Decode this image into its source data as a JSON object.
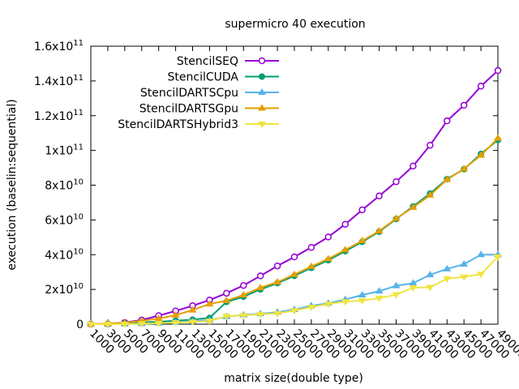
{
  "chart_data": {
    "type": "line",
    "title": "supermicro 40 execution",
    "xlabel": "matrix size(double type)",
    "ylabel": "execution (baselin:sequential)",
    "ylim": [
      0,
      160000000000.0
    ],
    "yticks": [
      {
        "value": 0,
        "label": "0"
      },
      {
        "value": 20000000000.0,
        "label": "2x10",
        "exp": "10"
      },
      {
        "value": 40000000000.0,
        "label": "4x10",
        "exp": "10"
      },
      {
        "value": 60000000000.0,
        "label": "6x10",
        "exp": "10"
      },
      {
        "value": 80000000000.0,
        "label": "8x10",
        "exp": "10"
      },
      {
        "value": 100000000000.0,
        "label": "1x10",
        "exp": "11"
      },
      {
        "value": 120000000000.0,
        "label": "1.2x10",
        "exp": "11"
      },
      {
        "value": 140000000000.0,
        "label": "1.4x10",
        "exp": "11"
      },
      {
        "value": 160000000000.0,
        "label": "1.6x10",
        "exp": "11"
      }
    ],
    "grid": false,
    "legend_position": "top-left",
    "categories": [
      "1000",
      "3000",
      "5000",
      "7000",
      "9000",
      "11000",
      "13000",
      "15000",
      "17000",
      "19000",
      "21000",
      "23000",
      "25000",
      "27000",
      "29000",
      "31000",
      "33000",
      "35000",
      "37000",
      "39000",
      "41000",
      "43000",
      "45000",
      "47000",
      "49000"
    ],
    "series": [
      {
        "name": "StencilSEQ",
        "color": "#9400d3",
        "marker": "circle-open",
        "values": [
          0,
          130000000.0,
          960000000.0,
          2400000000.0,
          4900000000.0,
          7600000000.0,
          10600000000.0,
          13900000000.0,
          17800000000.0,
          22300000000.0,
          27800000000.0,
          33500000000.0,
          38700000000.0,
          44200000000.0,
          50200000000.0,
          57500000000.0,
          65800000000.0,
          73800000000.0,
          82000000000.0,
          91000000000.0,
          103000000000.0,
          117000000000.0,
          126000000000.0,
          137000000000.0,
          146000000000.0
        ]
      },
      {
        "name": "StencilCUDA",
        "color": "#009e73",
        "marker": "circle-filled",
        "values": [
          0,
          100000000.0,
          500000000.0,
          1000000000.0,
          1400000000.0,
          2000000000.0,
          2600000000.0,
          3600000000.0,
          12800000000.0,
          15800000000.0,
          20000000000.0,
          23600000000.0,
          27800000000.0,
          32400000000.0,
          36800000000.0,
          42000000000.0,
          47400000000.0,
          53200000000.0,
          60500000000.0,
          67800000000.0,
          75200000000.0,
          83500000000.0,
          89200000000.0,
          98000000000.0,
          106000000000.0
        ]
      },
      {
        "name": "StencilDARTSCpu",
        "color": "#56b4e9",
        "marker": "triangle-filled",
        "values": [
          0,
          0,
          100000000.0,
          300000000.0,
          600000000.0,
          1000000000.0,
          1600000000.0,
          2300000000.0,
          4300000000.0,
          5300000000.0,
          6000000000.0,
          6900000000.0,
          8400000000.0,
          10600000000.0,
          12000000000.0,
          14200000000.0,
          16800000000.0,
          19000000000.0,
          22100000000.0,
          23600000000.0,
          28400000000.0,
          31800000000.0,
          34500000000.0,
          40000000000.0,
          40000000000.0
        ]
      },
      {
        "name": "StencilDARTSGpu",
        "color": "#e69f00",
        "marker": "triangle-filled",
        "values": [
          0,
          300000000.0,
          800000000.0,
          1900000000.0,
          3200000000.0,
          5200000000.0,
          8100000000.0,
          11600000000.0,
          13500000000.0,
          16800000000.0,
          21000000000.0,
          24200000000.0,
          28600000000.0,
          33200000000.0,
          37600000000.0,
          42800000000.0,
          48000000000.0,
          53600000000.0,
          60800000000.0,
          67200000000.0,
          74200000000.0,
          83200000000.0,
          89400000000.0,
          97200000000.0,
          107000000000.0
        ]
      },
      {
        "name": "StencilDARTSHybrid3",
        "color": "#f0e442",
        "marker": "triangle-down-filled",
        "values": [
          0,
          0,
          0,
          300000000.0,
          500000000.0,
          900000000.0,
          1300000000.0,
          1800000000.0,
          4600000000.0,
          5000000000.0,
          5700000000.0,
          6200000000.0,
          7800000000.0,
          9800000000.0,
          11600000000.0,
          13000000000.0,
          13600000000.0,
          15000000000.0,
          17000000000.0,
          21000000000.0,
          21200000000.0,
          26200000000.0,
          27200000000.0,
          28800000000.0,
          38800000000.0
        ]
      }
    ]
  }
}
